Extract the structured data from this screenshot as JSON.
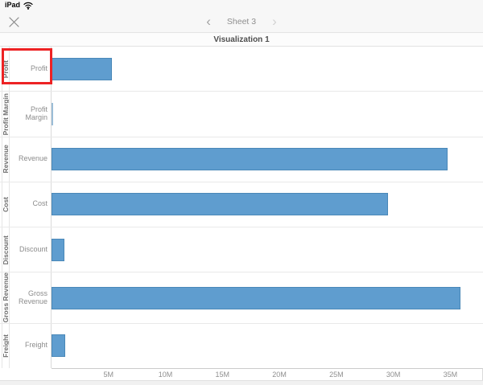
{
  "status_bar": {
    "device_label": "iPad",
    "wifi_icon": "wifi-signal"
  },
  "nav_bar": {
    "close_icon": "close-x",
    "prev_icon": "‹",
    "next_icon": "›",
    "sheet_label": "Sheet 3"
  },
  "main": {
    "chart_title": "Visualization 1"
  },
  "chart_data": {
    "type": "bar",
    "orientation": "horizontal",
    "title": "Visualization 1",
    "categories": [
      "Profit",
      "Profit Margin",
      "Revenue",
      "Cost",
      "Discount",
      "Gross Revenue",
      "Freight"
    ],
    "values_millions": [
      5.3,
      0.05,
      34.7,
      29.5,
      1.1,
      35.8,
      1.2
    ],
    "x_ticks": [
      {
        "value": 5,
        "label": "5M"
      },
      {
        "value": 10,
        "label": "10M"
      },
      {
        "value": 15,
        "label": "15M"
      },
      {
        "value": 20,
        "label": "20M"
      },
      {
        "value": 25,
        "label": "25M"
      },
      {
        "value": 30,
        "label": "30M"
      },
      {
        "value": 35,
        "label": "35M"
      }
    ],
    "xlim": [
      0,
      37.8
    ],
    "grid": "off",
    "legend": "none",
    "bar_color": "#5f9dcf",
    "bar_border_color": "#4a88b8"
  },
  "highlight": {
    "target_category": "Profit",
    "color": "#ed2224"
  }
}
